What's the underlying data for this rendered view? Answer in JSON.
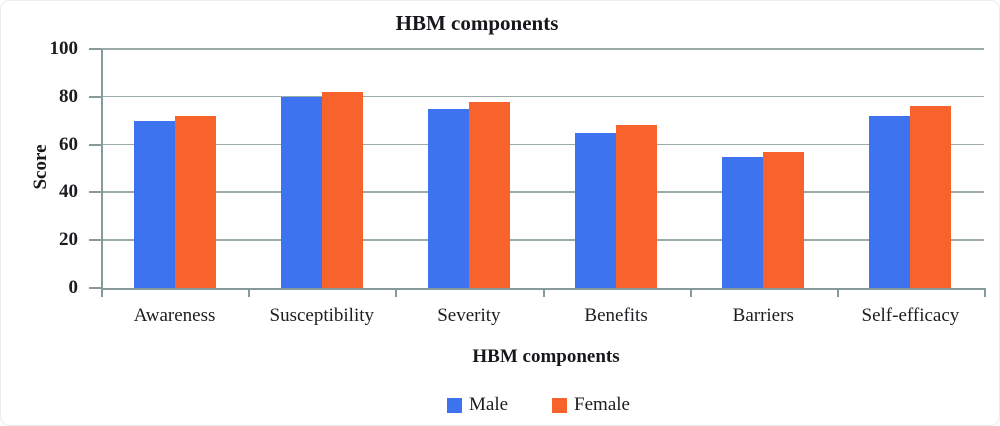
{
  "figure": {
    "title": "HBM components",
    "y_axis_label": "Score",
    "x_axis_label": "HBM components",
    "legend_labels": [
      "Male",
      "Female"
    ]
  },
  "chart_data": {
    "type": "bar",
    "title": "HBM components",
    "xlabel": "HBM components",
    "ylabel": "Score",
    "ylim": [
      0,
      100
    ],
    "yticks": [
      0,
      20,
      40,
      60,
      80,
      100
    ],
    "grid": true,
    "legend_position": "bottom",
    "categories": [
      "Awareness",
      "Susceptibility",
      "Severity",
      "Benefits",
      "Barriers",
      "Self-efficacy"
    ],
    "series": [
      {
        "name": "Male",
        "color": "#3D73EE",
        "values": [
          70,
          80,
          75,
          65,
          55,
          72
        ]
      },
      {
        "name": "Female",
        "color": "#F8622B",
        "values": [
          72,
          82,
          78,
          68,
          57,
          76
        ]
      }
    ]
  }
}
